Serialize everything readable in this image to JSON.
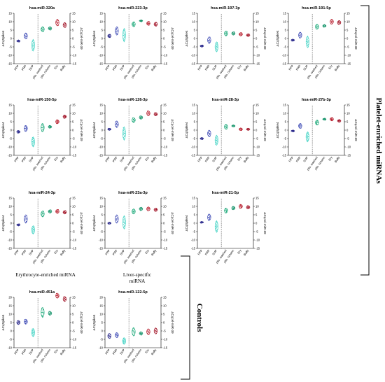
{
  "section_labels": {
    "platelet": "Platelet-enriched miRNAs",
    "controls": "Controls",
    "erythrocyte": "Erythrocyte-enriched miRNA",
    "liver": "Liver-specific miRNA"
  },
  "axis_labels": {
    "left": "ΔCq₀₀₀₃₀",
    "right": "ΔCq₀₀₀₃₀"
  },
  "axis_label_left": "ΔCqSpike4",
  "axis_label_right": "ΔCqcel-miR-39",
  "colors": {
    "PPP": "#2b2a8c",
    "PRP": "#3c49b5",
    "SUP": "#4fd6c8",
    "plts. washed": "#1aa878",
    "plts. column": "#18956c",
    "Ery": "#b81f2e",
    "Buffy": "#a3172a"
  },
  "chart_data": [
    {
      "type": "violin",
      "title": "hsa-miR-320a",
      "categories": [
        "PPP",
        "PRP",
        "SUP",
        "plts. washed",
        "plts. column",
        "Ery",
        "Buffy"
      ],
      "ylim_left": [
        -15,
        15
      ],
      "ylim_right": [
        -15,
        15
      ],
      "values": [
        -1.5,
        1.5,
        -4,
        5.5,
        6,
        9.5,
        8
      ],
      "spread": [
        0.6,
        1.8,
        3.5,
        1.5,
        1,
        2,
        1.5
      ]
    },
    {
      "type": "violin",
      "title": "hsa-miR-223-3p",
      "categories": [
        "PPP",
        "PRP",
        "SUP",
        "plts. washed",
        "plts. column",
        "Ery",
        "Buffy"
      ],
      "ylim_left": [
        -15,
        15
      ],
      "ylim_right": [
        -15,
        15
      ],
      "values": [
        1.5,
        4.5,
        2,
        8.5,
        10.5,
        9,
        8.5
      ],
      "spread": [
        1,
        2.5,
        4,
        1.5,
        0.5,
        1.2,
        1.2
      ]
    },
    {
      "type": "violin",
      "title": "hsa-miR-197-3p",
      "categories": [
        "PPP",
        "PRP",
        "SUP",
        "plts. washed",
        "plts. column",
        "Ery",
        "Buffy"
      ],
      "ylim_left": [
        -15,
        15
      ],
      "ylim_right": [
        -15,
        15
      ],
      "values": [
        -4.5,
        -1,
        -5,
        3,
        3,
        2.5,
        2
      ],
      "spread": [
        0.6,
        2,
        3,
        1.5,
        1,
        1,
        0.8
      ]
    },
    {
      "type": "violin",
      "title": "hsa-miR-191-5p",
      "categories": [
        "PPP",
        "PRP",
        "SUP",
        "plts. washed",
        "plts. column",
        "Ery",
        "Buffy"
      ],
      "ylim_left": [
        -15,
        15
      ],
      "ylim_right": [
        -15,
        15
      ],
      "values": [
        -1,
        2,
        -2,
        7,
        7.5,
        10,
        9.5
      ],
      "spread": [
        0.6,
        1.8,
        3.5,
        1.5,
        0.8,
        1.5,
        1.2
      ]
    },
    {
      "type": "violin",
      "title": "hsa-miR-150-5p",
      "categories": [
        "PPP",
        "PRP",
        "SUP",
        "plts. washed",
        "plts. column",
        "Ery",
        "Buffy"
      ],
      "ylim_left": [
        -15,
        15
      ],
      "ylim_right": [
        -15,
        15
      ],
      "values": [
        -1,
        1,
        -7,
        1.5,
        2,
        5,
        8
      ],
      "spread": [
        0.8,
        1.8,
        3,
        2.5,
        0.8,
        1.2,
        1
      ]
    },
    {
      "type": "violin",
      "title": "hsa-miR-126-3p",
      "categories": [
        "PPP",
        "PRP",
        "SUP",
        "plts. washed",
        "plts. column",
        "Ery",
        "Buffy"
      ],
      "ylim_left": [
        -15,
        15
      ],
      "ylim_right": [
        -15,
        15
      ],
      "values": [
        0.5,
        3.5,
        -2,
        6,
        7.5,
        10,
        9.5
      ],
      "spread": [
        0.6,
        2,
        4,
        1.5,
        1,
        1.5,
        1
      ]
    },
    {
      "type": "violin",
      "title": "hsa-miR-28-3p",
      "categories": [
        "PPP",
        "PRP",
        "SUP",
        "plts. washed",
        "plts. column",
        "Ery",
        "Buffy"
      ],
      "ylim_left": [
        -15,
        15
      ],
      "ylim_right": [
        -15,
        15
      ],
      "values": [
        -5,
        -2,
        -6,
        2,
        2.5,
        0.5,
        0.5
      ],
      "spread": [
        0.6,
        2,
        3,
        1.5,
        0.6,
        0.8,
        0.6
      ]
    },
    {
      "type": "violin",
      "title": "hsa-miR-27b-3p",
      "categories": [
        "PPP",
        "PRP",
        "SUP",
        "plts. washed",
        "plts. column",
        "Ery",
        "Buffy"
      ],
      "ylim_left": [
        -15,
        15
      ],
      "ylim_right": [
        -15,
        15
      ],
      "values": [
        -0.5,
        2.5,
        -4,
        4.5,
        6.5,
        6.5,
        5.5
      ],
      "spread": [
        0.5,
        1.5,
        3,
        1.5,
        0.6,
        1,
        0.8
      ]
    },
    {
      "type": "violin",
      "title": "hsa-miR-24-3p",
      "categories": [
        "PPP",
        "PRP",
        "SUP",
        "plts. washed",
        "plts. column",
        "Ery",
        "Buffy"
      ],
      "ylim_left": [
        -15,
        15
      ],
      "ylim_right": [
        -15,
        15
      ],
      "values": [
        -1,
        2.5,
        -4,
        5.5,
        7,
        7,
        6.5
      ],
      "spread": [
        0.6,
        2.5,
        2.5,
        1.8,
        1,
        1.2,
        1
      ]
    },
    {
      "type": "violin",
      "title": "hsa-miR-23a-3p",
      "categories": [
        "PPP",
        "PRP",
        "SUP",
        "plts. washed",
        "plts. column",
        "Ery",
        "Buffy"
      ],
      "ylim_left": [
        -15,
        15
      ],
      "ylim_right": [
        -15,
        15
      ],
      "values": [
        0,
        2.5,
        0.5,
        7,
        8.5,
        8.5,
        8
      ],
      "spread": [
        0.6,
        2.5,
        4,
        1.5,
        1,
        1.2,
        1
      ]
    },
    {
      "type": "violin",
      "title": "hsa-miR-21-5p",
      "categories": [
        "PPP",
        "PRP",
        "SUP",
        "plts. washed",
        "plts. column",
        "Ery",
        "Buffy"
      ],
      "ylim_left": [
        -15,
        15
      ],
      "ylim_right": [
        -15,
        15
      ],
      "values": [
        0.5,
        3.5,
        -2,
        7.5,
        9,
        10,
        9.5
      ],
      "spread": [
        0.5,
        2,
        3.5,
        1.5,
        1,
        1.2,
        1
      ]
    },
    {
      "type": "violin",
      "title": "hsa-miR-451a",
      "categories": [
        "PPP",
        "PRP",
        "SUP",
        "plts. washed",
        "plts. column",
        "Ery",
        "Buffy"
      ],
      "ylim_left": [
        -10,
        20
      ],
      "ylim_right": [
        -15,
        15
      ],
      "values": [
        5,
        5.5,
        -1,
        6,
        5.5,
        16,
        14
      ],
      "spread": [
        1.2,
        1.5,
        2.5,
        3,
        1.2,
        1.5,
        1.5
      ]
    },
    {
      "type": "violin",
      "title": "hsa-miR-122-5p",
      "categories": [
        "PPP",
        "PRP",
        "SUP",
        "plts. washed",
        "plts. column",
        "Ery",
        "Buffy"
      ],
      "ylim_left": [
        -10,
        20
      ],
      "ylim_right": [
        -15,
        15
      ],
      "values": [
        -3,
        -2.5,
        -6,
        -5.5,
        -6.5,
        -5.5,
        -5
      ],
      "spread": [
        1.5,
        1.5,
        2,
        2.5,
        1,
        1.8,
        1.8
      ]
    }
  ]
}
